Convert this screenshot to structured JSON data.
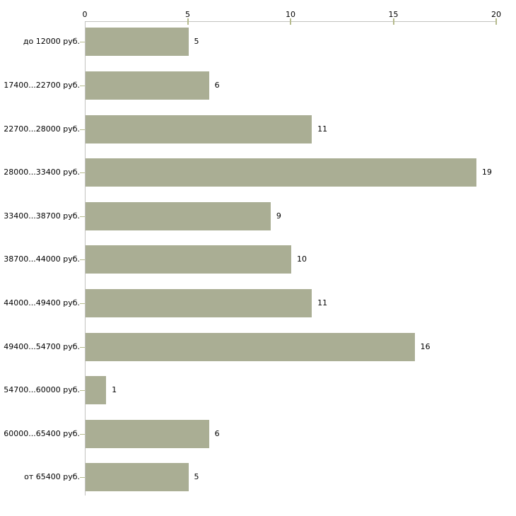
{
  "chart_data": {
    "type": "bar",
    "orientation": "horizontal",
    "title": "",
    "xlabel": "",
    "ylabel": "",
    "x_axis_position": "top",
    "x_ticks": [
      "0",
      "5",
      "10",
      "15",
      "20"
    ],
    "x_tick_values": [
      0,
      5,
      10,
      15,
      20
    ],
    "xlim": [
      0,
      20
    ],
    "grid": false,
    "legend": false,
    "value_labels_shown": true,
    "categories": [
      "до 12000 руб.",
      "17400...22700 руб.",
      "22700...28000 руб.",
      "28000...33400 руб.",
      "33400...38700 руб.",
      "38700...44000 руб.",
      "44000...49400 руб.",
      "49400...54700 руб.",
      "54700...60000 руб.",
      "60000...65400 руб.",
      "от 65400 руб."
    ],
    "values": [
      5,
      6,
      11,
      19,
      9,
      10,
      11,
      16,
      1,
      6,
      5
    ]
  },
  "colors": {
    "bar_fill": "#aaae94",
    "axis_line": "#c3c3c0",
    "tick_mark": "#b6bb8d",
    "label_text": "#000000",
    "background": "#ffffff"
  }
}
